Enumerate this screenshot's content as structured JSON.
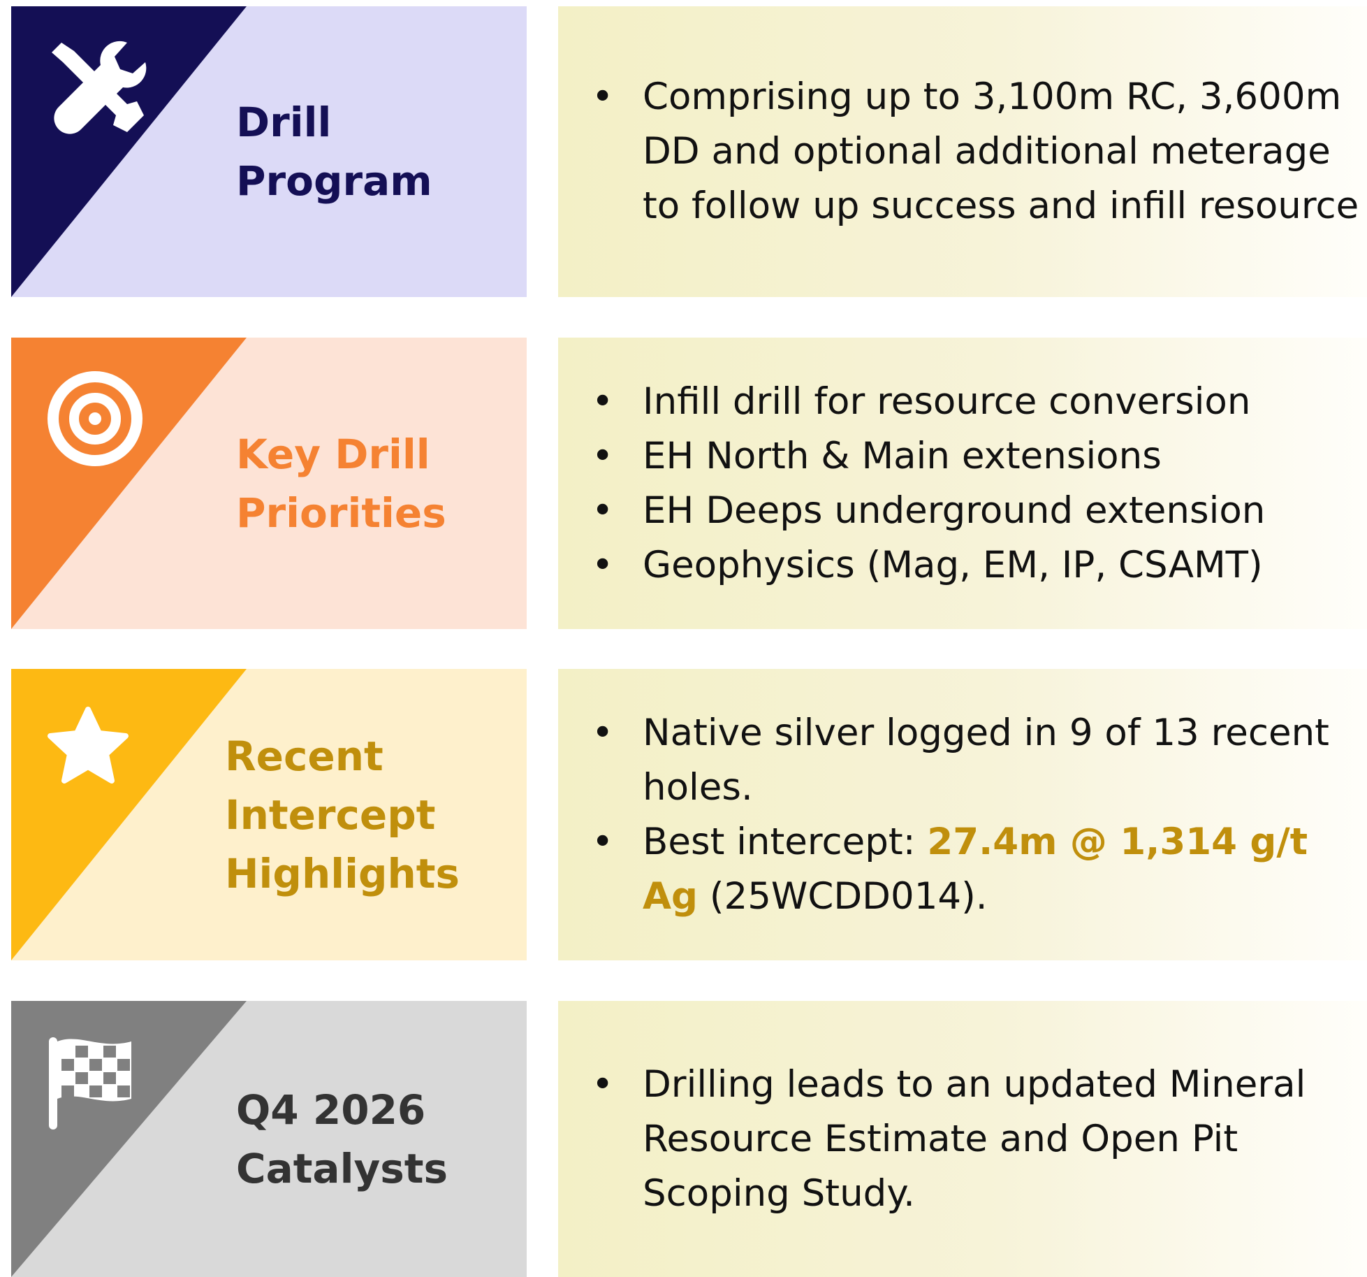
{
  "rows": [
    {
      "title": [
        "Drill",
        "Program"
      ],
      "dark": "#140f55",
      "light": "#dcdaf7",
      "title_color": "#140f55",
      "icon": "tools",
      "bullets": [
        [
          {
            "text": "Comprising up to 3,100m RC, 3,600m DD and optional additional meterage to follow up success and infill resource"
          }
        ]
      ]
    },
    {
      "title": [
        "Key Drill",
        "Priorities"
      ],
      "dark": "#f58232",
      "light": "#fde3d6",
      "title_color": "#f58232",
      "icon": "target",
      "bullets": [
        [
          {
            "text": "Infill drill for resource conversion"
          }
        ],
        [
          {
            "text": "EH North & Main extensions"
          }
        ],
        [
          {
            "text": "EH Deeps underground extension"
          }
        ],
        [
          {
            "text": "Geophysics (Mag, EM, IP, CSAMT)"
          }
        ]
      ]
    },
    {
      "title": [
        "Recent",
        "Intercept",
        "Highlights"
      ],
      "dark": "#fdb913",
      "light": "#fef0cc",
      "title_color": "#c08f0c",
      "icon": "star",
      "bullets": [
        [
          {
            "text": "Native silver logged in 9 of 13 recent holes."
          }
        ],
        [
          {
            "text": "Best intercept: "
          },
          {
            "text": "27.4m @ 1,314 g/t Ag",
            "color": "#c08f0c"
          },
          {
            "text": " (25WCDD014)."
          }
        ]
      ]
    },
    {
      "title": [
        "Q4 2026",
        "Catalysts"
      ],
      "dark": "#808080",
      "light": "#d9d9d9",
      "title_color": "#333333",
      "icon": "flag",
      "bullets": [
        [
          {
            "text": "Drilling leads to an updated Mineral Resource Estimate and Open Pit Scoping Study."
          }
        ]
      ]
    }
  ]
}
